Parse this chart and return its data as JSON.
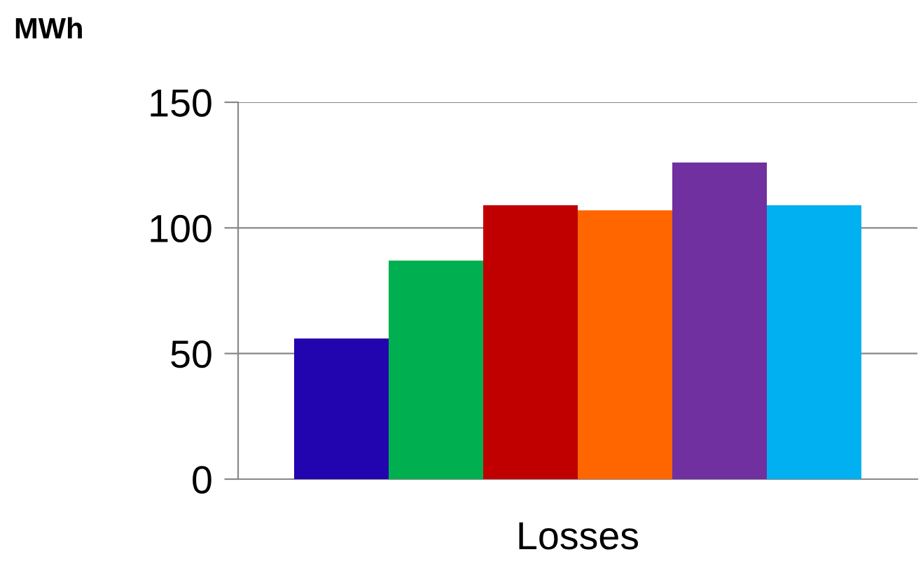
{
  "chart_data": {
    "type": "bar",
    "ylabel": "MWh",
    "xlabel": "Losses",
    "categories": [
      null,
      null,
      null,
      null,
      null,
      null
    ],
    "values": [
      56,
      87,
      109,
      107,
      126,
      109
    ],
    "colors": [
      "#2305b0",
      "#00b050",
      "#c00000",
      "#ff6600",
      "#7030a0",
      "#00b0f0"
    ],
    "ylim": [
      0,
      150
    ],
    "yticks": [
      0,
      50,
      100,
      150
    ],
    "grid": "y"
  }
}
